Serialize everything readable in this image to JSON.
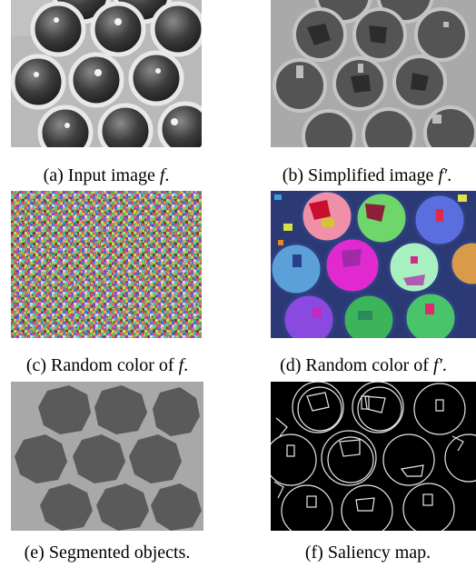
{
  "figure": {
    "panels": [
      {
        "id": "a",
        "label": "(a)",
        "text": "Input image",
        "math": "f",
        "suffix": "."
      },
      {
        "id": "b",
        "label": "(b)",
        "text": "Simplified image",
        "math": "f′",
        "suffix": "."
      },
      {
        "id": "c",
        "label": "(c)",
        "text": "Random color of",
        "math": "f",
        "suffix": "."
      },
      {
        "id": "d",
        "label": "(d)",
        "text": "Random color of",
        "math": "f′",
        "suffix": "."
      },
      {
        "id": "e",
        "label": "(e)",
        "text": "Segmented objects.",
        "math": "",
        "suffix": ""
      },
      {
        "id": "f",
        "label": "(f)",
        "text": "Saliency map.",
        "math": "",
        "suffix": ""
      }
    ]
  }
}
